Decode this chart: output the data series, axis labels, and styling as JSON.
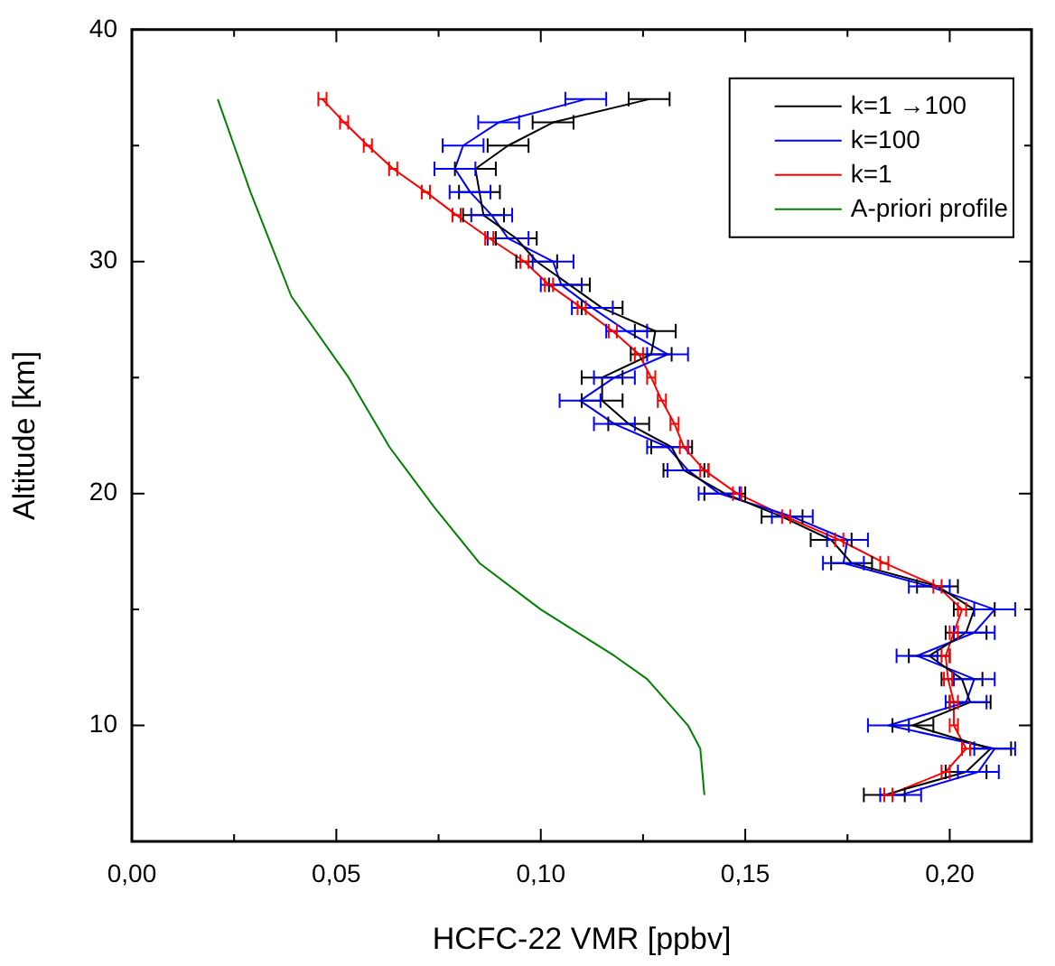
{
  "chart_data": {
    "type": "line",
    "xlabel": "HCFC-22 VMR [ppbv]",
    "ylabel": "Altitude [km]",
    "xlim": [
      0,
      0.22
    ],
    "ylim": [
      5,
      40
    ],
    "xticks": [
      {
        "value": 0,
        "label": "0,00"
      },
      {
        "value": 0.025,
        "label": null
      },
      {
        "value": 0.05,
        "label": "0,05"
      },
      {
        "value": 0.075,
        "label": null
      },
      {
        "value": 0.1,
        "label": "0,10"
      },
      {
        "value": 0.125,
        "label": null
      },
      {
        "value": 0.15,
        "label": "0,15"
      },
      {
        "value": 0.175,
        "label": null
      },
      {
        "value": 0.2,
        "label": "0,20"
      }
    ],
    "yticks": [
      {
        "value": 15,
        "label": null
      },
      10,
      {
        "value": 25,
        "label": null
      },
      20,
      {
        "value": 35,
        "label": null
      },
      30,
      40
    ],
    "grid": false,
    "legend": "top right",
    "marker": "none",
    "line_style": "solid",
    "series": [
      {
        "name": "k=1 →100",
        "color": "#000000",
        "x": [
          0.184,
          0.204,
          0.21,
          0.191,
          0.205,
          0.203,
          0.195,
          0.204,
          0.206,
          0.197,
          0.176,
          0.171,
          0.159,
          0.145,
          0.135,
          0.132,
          0.1215,
          0.115,
          0.115,
          0.127,
          0.128,
          0.115,
          0.107,
          0.099,
          0.094,
          0.086,
          0.085,
          0.084,
          0.092,
          0.103,
          0.1265
        ],
        "values": [
          7,
          8,
          9,
          10,
          11,
          12,
          13,
          14,
          15,
          16,
          17,
          18,
          19,
          20,
          21,
          22,
          23,
          24,
          25,
          26,
          27,
          28,
          29,
          30,
          31,
          32,
          33,
          34,
          35,
          36,
          37
        ],
        "xerrors": [
          0.005,
          0.005,
          0.005,
          0.005,
          0.005,
          0.005,
          0.005,
          0.005,
          0.005,
          0.005,
          0.005,
          0.005,
          0.005,
          0.005,
          0.005,
          0.005,
          0.005,
          0.005,
          0.005,
          0.005,
          0.005,
          0.005,
          0.005,
          0.005,
          0.005,
          0.005,
          0.005,
          0.005,
          0.005,
          0.005,
          0.005
        ]
      },
      {
        "name": "k=100",
        "color": "#0000ff",
        "x": [
          0.188,
          0.207,
          0.211,
          0.185,
          0.204,
          0.206,
          0.192,
          0.206,
          0.211,
          0.195,
          0.174,
          0.175,
          0.1615,
          0.1436,
          0.136,
          0.131,
          0.118,
          0.1096,
          0.118,
          0.131,
          0.121,
          0.1126,
          0.105,
          0.103,
          0.092,
          0.088,
          0.0827,
          0.079,
          0.081,
          0.0897,
          0.111
        ],
        "values": [
          7,
          8,
          9,
          10,
          11,
          12,
          13,
          14,
          15,
          16,
          17,
          18,
          19,
          20,
          21,
          22,
          23,
          24,
          25,
          26,
          27,
          28,
          29,
          30,
          31,
          32,
          33,
          34,
          35,
          36,
          37
        ],
        "xerrors": [
          0.005,
          0.005,
          0.005,
          0.005,
          0.005,
          0.005,
          0.005,
          0.005,
          0.005,
          0.005,
          0.005,
          0.005,
          0.005,
          0.005,
          0.005,
          0.005,
          0.005,
          0.005,
          0.005,
          0.005,
          0.005,
          0.005,
          0.005,
          0.005,
          0.005,
          0.005,
          0.005,
          0.005,
          0.005,
          0.005,
          0.005
        ]
      },
      {
        "name": "k=1",
        "color": "#ff0000",
        "x": [
          0.185,
          0.199,
          0.204,
          0.201,
          0.201,
          0.1996,
          0.199,
          0.201,
          0.203,
          0.197,
          0.184,
          0.173,
          0.16,
          0.148,
          0.14,
          0.135,
          0.1327,
          0.1296,
          0.127,
          0.124,
          0.1176,
          0.11,
          0.102,
          0.096,
          0.0874,
          0.0794,
          0.0719,
          0.0639,
          0.0577,
          0.0519,
          0.0466
        ],
        "values": [
          7,
          8,
          9,
          10,
          11,
          12,
          13,
          14,
          15,
          16,
          17,
          18,
          19,
          20,
          21,
          22,
          23,
          24,
          25,
          26,
          27,
          28,
          29,
          30,
          31,
          32,
          33,
          34,
          35,
          36,
          37
        ],
        "xerrors": [
          0.001,
          0.001,
          0.001,
          0.001,
          0.001,
          0.001,
          0.001,
          0.001,
          0.001,
          0.001,
          0.001,
          0.001,
          0.001,
          0.001,
          0.001,
          0.001,
          0.001,
          0.001,
          0.001,
          0.001,
          0.001,
          0.001,
          0.001,
          0.001,
          0.001,
          0.001,
          0.001,
          0.001,
          0.001,
          0.001,
          0.001
        ]
      },
      {
        "name": "A-priori profile",
        "color": "#008000",
        "x": [
          0.14,
          0.1395,
          0.139,
          0.136,
          0.131,
          0.126,
          0.118,
          0.1,
          0.085,
          0.074,
          0.063,
          0.053,
          0.039,
          0.029,
          0.025,
          0.021
        ],
        "values": [
          7,
          8,
          9,
          10,
          11,
          12,
          13,
          15,
          17,
          19.4,
          22,
          25,
          28.5,
          33,
          35,
          37
        ]
      }
    ]
  }
}
